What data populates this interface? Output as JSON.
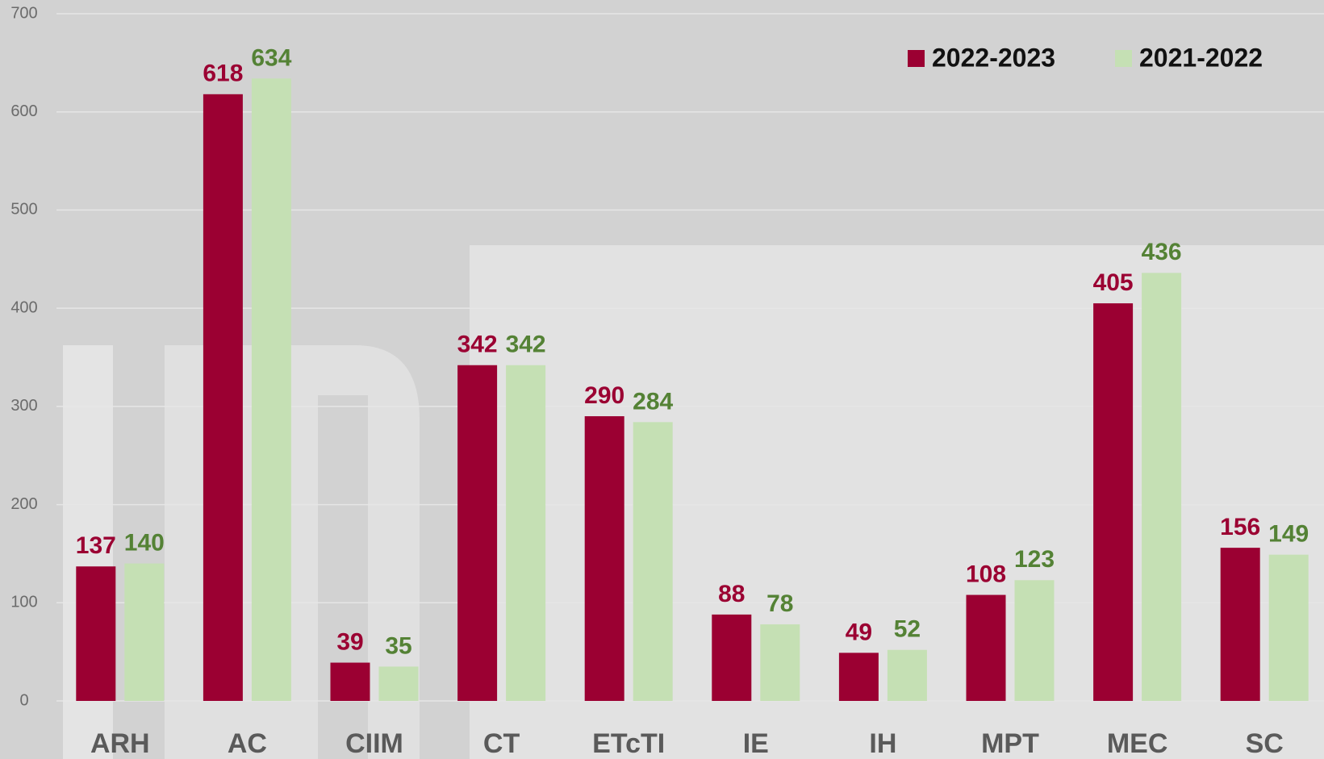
{
  "chart_data": {
    "type": "bar",
    "categories": [
      "ARH",
      "AC",
      "CIIM",
      "CT",
      "ETcTI",
      "IE",
      "IH",
      "MPT",
      "MEC",
      "SC"
    ],
    "series": [
      {
        "name": "2022-2023",
        "color": "#9b0032",
        "label_color": "#9b0032",
        "values": [
          137,
          618,
          39,
          342,
          290,
          88,
          49,
          108,
          405,
          156
        ]
      },
      {
        "name": "2021-2022",
        "color": "#c5e0b4",
        "label_color": "#548235",
        "values": [
          140,
          634,
          35,
          342,
          284,
          78,
          52,
          123,
          436,
          149
        ]
      }
    ],
    "ylim": [
      0,
      700
    ],
    "yticks": [
      0,
      100,
      200,
      300,
      400,
      500,
      600,
      700
    ],
    "grid": true,
    "legend": "top-right"
  }
}
